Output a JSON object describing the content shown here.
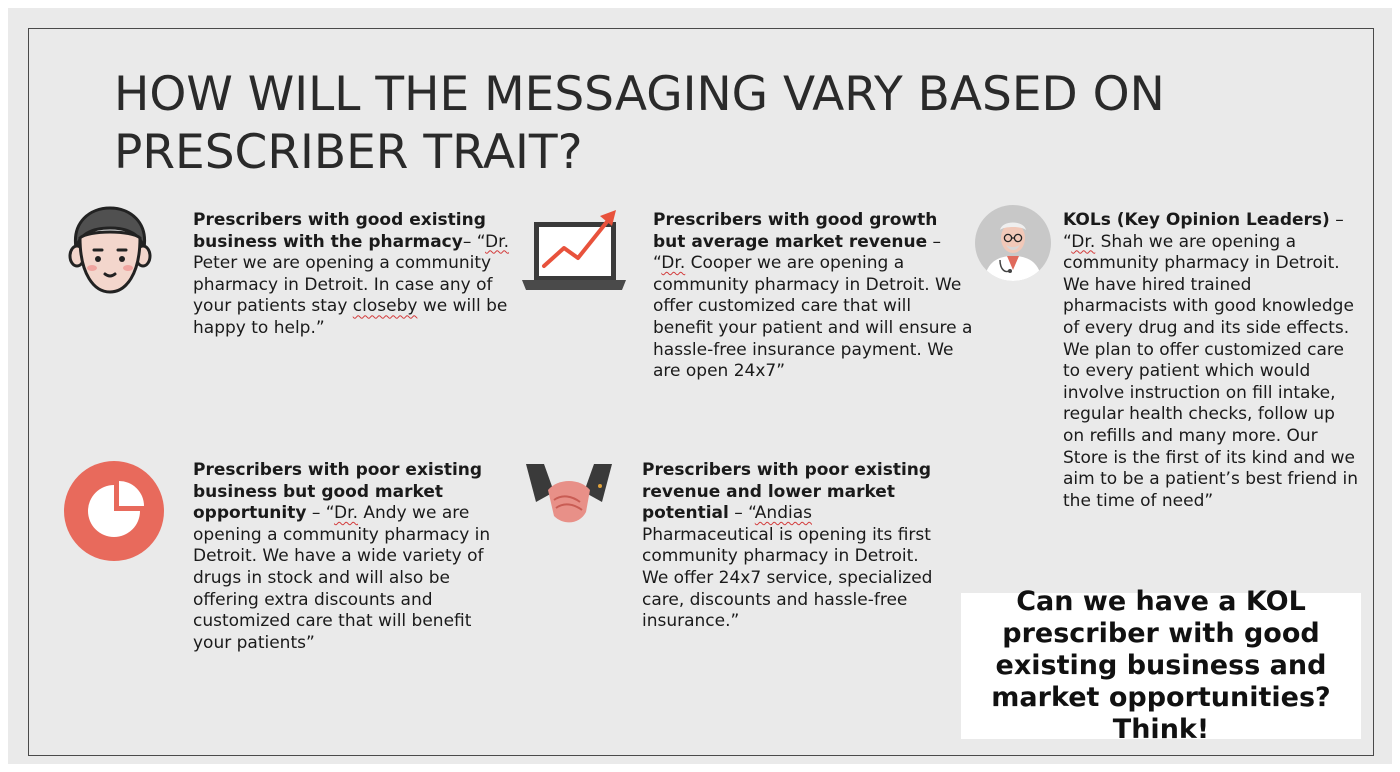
{
  "title": "HOW WILL THE MESSAGING VARY BASED ON PRESCRIBER TRAIT?",
  "segments": [
    {
      "icon": "person-face-icon",
      "heading": "Prescribers with good existing business with the pharmacy",
      "sep": "– “",
      "first_word": "Dr.",
      "body": " Peter we are opening a community pharmacy in Detroit. In case any of your patients stay ",
      "flag_word": "closeby",
      "tail": " we will be happy to help.”"
    },
    {
      "icon": "laptop-growth-chart-icon",
      "heading": "Prescribers with good growth but average market revenue",
      "sep": " – “",
      "first_word": "Dr.",
      "body": " Cooper we are opening a community pharmacy in Detroit. We offer customized care that will benefit your patient and will ensure a hassle-free insurance payment. We are open 24x7”"
    },
    {
      "icon": "doctor-avatar-icon",
      "heading": "KOLs (Key Opinion Leaders)",
      "sep": " – “",
      "first_word": "Dr.",
      "body": " Shah we are opening a community pharmacy in Detroit. We have hired trained pharmacists with good knowledge of every drug and its side effects. We plan to offer customized care to every patient which would involve instruction on fill intake, regular health checks, follow up on refills and many more. Our Store is the first of its kind and we aim to be a patient’s best friend in the time of need”"
    },
    {
      "icon": "pie-chart-icon",
      "heading": "Prescribers with poor existing business but good market opportunity",
      "sep": " – “",
      "first_word": "Dr.",
      "body": " Andy we are opening a community pharmacy in Detroit. We have a wide variety of drugs in stock and will also be offering extra discounts and customized care that will benefit your patients”"
    },
    {
      "icon": "handshake-icon",
      "heading": "Prescribers with poor existing revenue and lower market potential",
      "sep": " – “",
      "first_word": "Andias",
      "body": " Pharmaceutical is opening its first community pharmacy in Detroit. We offer 24x7 service, specialized care, discounts and hassle-free insurance.”"
    }
  ],
  "callout": "Can we have a KOL prescriber with good existing business and market opportunities? Think!",
  "colors": {
    "slide_bg": "#eaeaea",
    "accent_red": "#e86a5c",
    "text": "#1a1a1a",
    "spell_underline": "#d23a3a"
  }
}
